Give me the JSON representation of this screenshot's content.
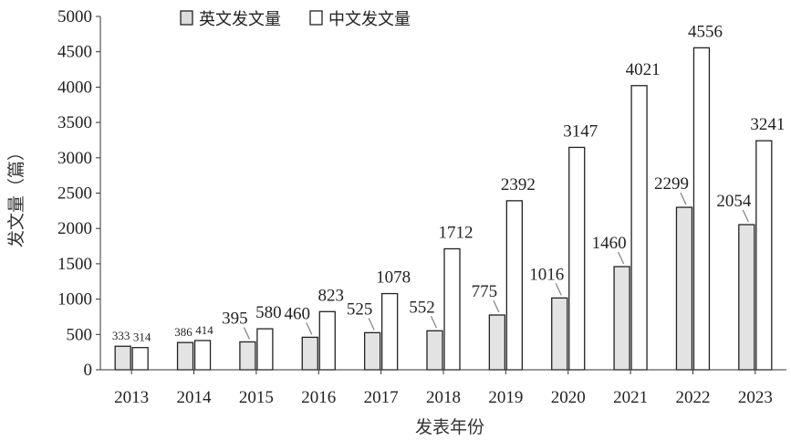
{
  "chart_data": {
    "type": "bar",
    "categories": [
      "2013",
      "2014",
      "2015",
      "2016",
      "2017",
      "2018",
      "2019",
      "2020",
      "2021",
      "2022",
      "2023"
    ],
    "series": [
      {
        "name": "英文发文量",
        "values": [
          333,
          386,
          395,
          460,
          525,
          552,
          775,
          1016,
          1460,
          2299,
          2054
        ],
        "color": "#e3e3e3"
      },
      {
        "name": "中文发文量",
        "values": [
          314,
          414,
          580,
          823,
          1078,
          1712,
          2392,
          3147,
          4021,
          4556,
          3241
        ],
        "color": "#ffffff"
      }
    ],
    "xlabel": "发表年份",
    "ylabel": "发文量（篇）",
    "ylim": [
      0,
      5000
    ],
    "yticks": [
      0,
      500,
      1000,
      1500,
      2000,
      2500,
      3000,
      3500,
      4000,
      4500,
      5000
    ],
    "legend_position": "top-center",
    "grid": false
  }
}
